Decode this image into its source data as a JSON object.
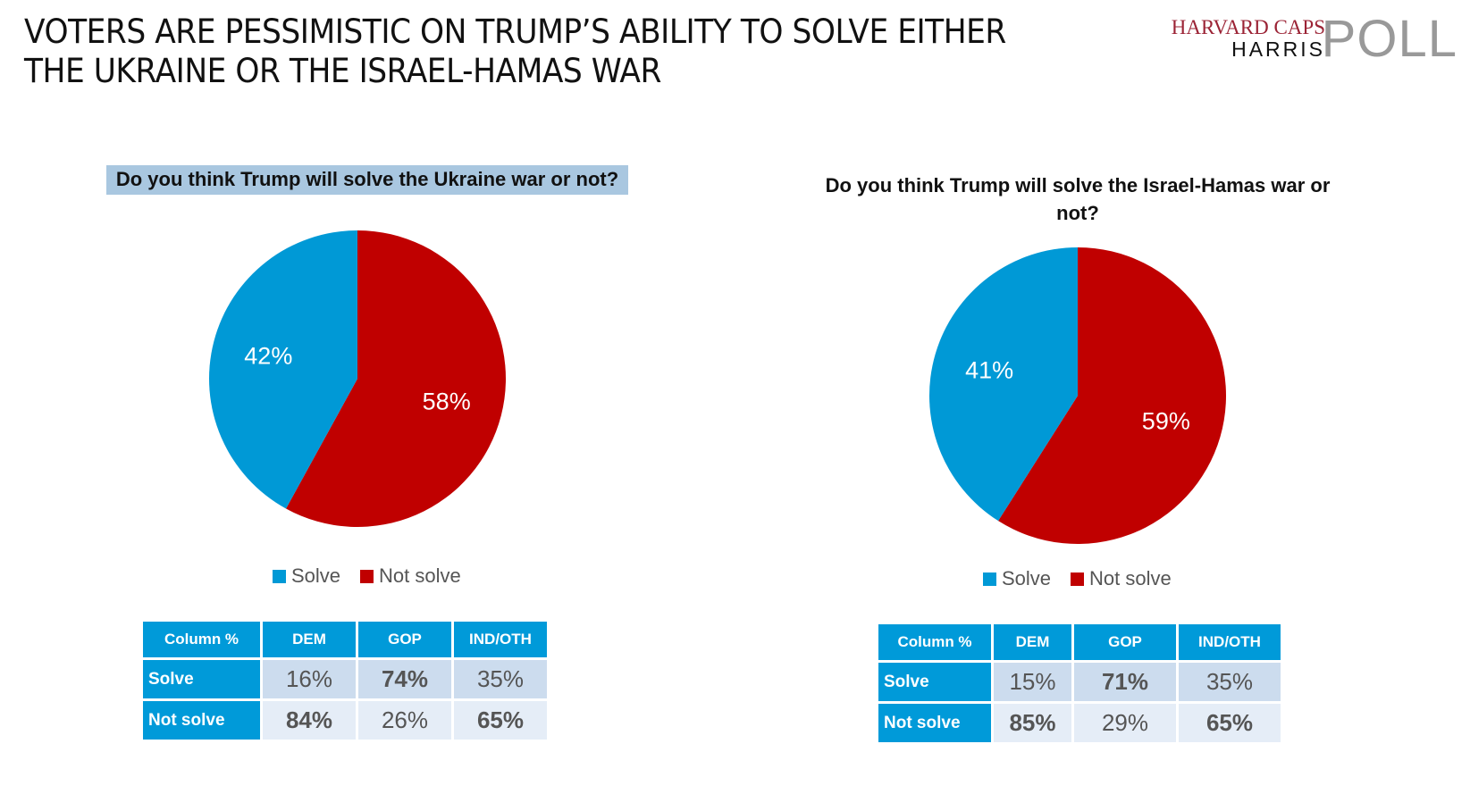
{
  "title_lines": [
    "VOTERS ARE PESSIMISTIC ON TRUMP’S ABILITY TO SOLVE EITHER",
    "THE UKRAINE OR THE ISRAEL-HAMAS WAR"
  ],
  "logo": {
    "line1": "HARVARD CAPS",
    "line2": "HARRIS",
    "line3": "POLL"
  },
  "colors": {
    "solve": "#0099d6",
    "not_solve": "#c00000",
    "header": "#009ad9"
  },
  "chart_data": [
    {
      "type": "pie",
      "title": "Do you think Trump will solve the Ukraine war or not?",
      "legend": "bottom",
      "slices": [
        {
          "name": "Solve",
          "value": 42,
          "label": "42%"
        },
        {
          "name": "Not solve",
          "value": 58,
          "label": "58%"
        }
      ]
    },
    {
      "type": "pie",
      "title": "Do you think Trump will solve the Israel-Hamas war or not?",
      "legend": "bottom",
      "slices": [
        {
          "name": "Solve",
          "value": 41,
          "label": "41%"
        },
        {
          "name": "Not solve",
          "value": 59,
          "label": "59%"
        }
      ]
    }
  ],
  "tables": [
    {
      "headers": [
        "Column %",
        "DEM",
        "GOP",
        "IND/OTH"
      ],
      "rows": [
        {
          "label": "Solve",
          "cells": [
            "16%",
            "74%",
            "35%"
          ],
          "bold": [
            false,
            true,
            false
          ]
        },
        {
          "label": "Not solve",
          "cells": [
            "84%",
            "26%",
            "65%"
          ],
          "bold": [
            true,
            false,
            true
          ]
        }
      ]
    },
    {
      "headers": [
        "Column %",
        "DEM",
        "GOP",
        "IND/OTH"
      ],
      "rows": [
        {
          "label": "Solve",
          "cells": [
            "15%",
            "71%",
            "35%"
          ],
          "bold": [
            false,
            true,
            false
          ]
        },
        {
          "label": "Not solve",
          "cells": [
            "85%",
            "29%",
            "65%"
          ],
          "bold": [
            true,
            false,
            true
          ]
        }
      ]
    }
  ]
}
